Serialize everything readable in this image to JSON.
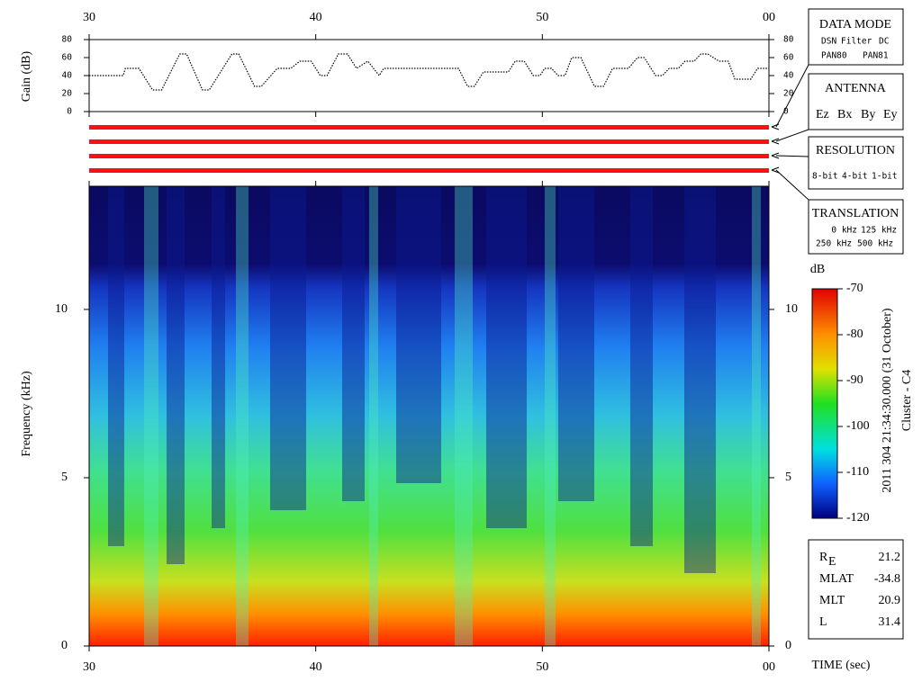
{
  "chart_data": [
    {
      "type": "line",
      "ylabel": "Gain (dB)",
      "x": [
        30,
        31.5,
        31.6,
        32.2,
        32.8,
        33.2,
        34,
        34.3,
        35,
        35.3,
        36.3,
        36.6,
        37.3,
        37.6,
        38.3,
        38.9,
        39.3,
        39.8,
        40.2,
        40.5,
        41,
        41.4,
        41.8,
        42.3,
        42.8,
        43,
        46.3,
        46.7,
        47,
        47.4,
        48.5,
        48.8,
        49.2,
        49.6,
        49.9,
        50.1,
        50.4,
        50.7,
        51,
        51.3,
        51.7,
        52.3,
        52.7,
        53.1,
        53.8,
        54.2,
        54.5,
        55,
        55.3,
        55.6,
        56,
        56.3,
        56.7,
        57,
        57.3,
        57.8,
        58.2,
        58.5,
        59.2,
        59.5,
        60
      ],
      "series": [
        {
          "color": "#000000",
          "values": [
            40,
            40,
            48,
            48,
            24,
            24,
            64,
            64,
            24,
            24,
            64,
            64,
            28,
            28,
            48,
            48,
            56,
            56,
            40,
            40,
            64,
            64,
            48,
            56,
            40,
            48,
            48,
            28,
            28,
            44,
            44,
            56,
            56,
            40,
            40,
            48,
            48,
            40,
            40,
            60,
            60,
            28,
            28,
            48,
            48,
            60,
            60,
            40,
            40,
            48,
            48,
            56,
            56,
            64,
            64,
            56,
            56,
            36,
            36,
            48,
            48
          ]
        }
      ],
      "xlim": [
        30,
        60
      ],
      "xticks": [
        30,
        40,
        50,
        {
          "value": 60,
          "label": "00"
        }
      ],
      "ylim": [
        0,
        80
      ],
      "yticks": [
        0,
        20,
        40,
        60,
        80
      ]
    },
    {
      "type": "spectrogram",
      "ylabel": "Frequency (kHz)",
      "xlabel": "TIME (sec)",
      "xlim": [
        30,
        60
      ],
      "xticks": [
        30,
        40,
        50,
        {
          "value": 60,
          "label": "00"
        }
      ],
      "ylim": [
        0,
        13.66
      ],
      "yticks": [
        0,
        5,
        10
      ]
    },
    {
      "type": "colorbar",
      "label": "dB",
      "ylim": [
        -120,
        -70
      ],
      "yticks": [
        -70,
        -80,
        -90,
        -100,
        -110,
        -120
      ]
    }
  ],
  "panels": {
    "data_mode": {
      "title": "DATA MODE",
      "items": [
        {
          "text": "DSN",
          "color": "#ff2020"
        },
        {
          "text": "Filter",
          "color": "#20d020"
        },
        {
          "text": "DC",
          "color": "#2020ff"
        },
        {
          "text": "PAN80",
          "color": "#000000"
        },
        {
          "text": "PAN81",
          "color": "#00d0e0"
        }
      ]
    },
    "antenna": {
      "title": "ANTENNA",
      "items": [
        {
          "text": "Ez",
          "color": "#ff2020"
        },
        {
          "text": "Bx",
          "color": "#20d020"
        },
        {
          "text": "By",
          "color": "#2020ff"
        },
        {
          "text": "Ey",
          "color": "#000000"
        }
      ]
    },
    "resolution": {
      "title": "RESOLUTION",
      "items": [
        {
          "text": "8-bit",
          "color": "#ff2020"
        },
        {
          "text": "4-bit",
          "color": "#20d020"
        },
        {
          "text": "1-bit",
          "color": "#2020ff"
        }
      ]
    },
    "translation": {
      "title": "TRANSLATION",
      "items": [
        {
          "text": "0 kHz",
          "color": "#ff2020"
        },
        {
          "text": "125 kHz",
          "color": "#20d020"
        },
        {
          "text": "250 kHz",
          "color": "#2020ff"
        },
        {
          "text": "500 kHz",
          "color": "#000000"
        }
      ]
    },
    "timestamp": "2011 304 21:34:30.000 (31 October)",
    "spacecraft": "Cluster - C4",
    "info": [
      {
        "label": "R",
        "sub": "E",
        "value": 21.2
      },
      {
        "label": "MLAT",
        "value": -34.8
      },
      {
        "label": "MLT",
        "value": 20.9
      },
      {
        "label": "L",
        "value": 31.4
      }
    ]
  }
}
